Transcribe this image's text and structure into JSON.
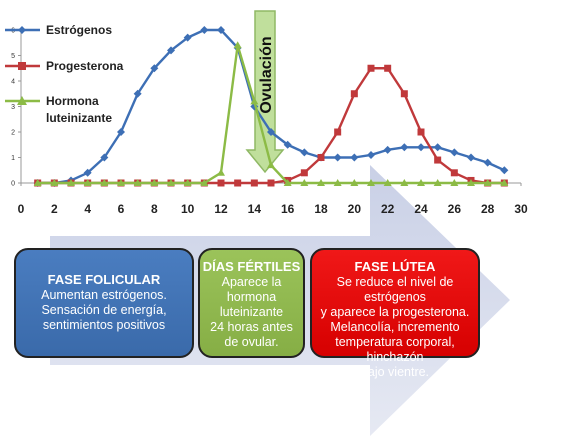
{
  "chart_data": {
    "type": "line",
    "x": [
      1,
      2,
      3,
      4,
      5,
      6,
      7,
      8,
      9,
      10,
      11,
      12,
      13,
      14,
      15,
      16,
      17,
      18,
      19,
      20,
      21,
      22,
      23,
      24,
      25,
      26,
      27,
      28,
      29
    ],
    "xlim": [
      0,
      30
    ],
    "ylim": [
      0,
      6
    ],
    "x_ticks": [
      0,
      2,
      4,
      6,
      8,
      10,
      12,
      14,
      16,
      18,
      20,
      22,
      24,
      26,
      28,
      30
    ],
    "y_ticks": [
      0,
      1,
      2,
      3,
      4,
      5,
      6
    ],
    "grid": false,
    "legend_position": "left",
    "series": [
      {
        "name": "Estrógenos",
        "color": "#3d6fb5",
        "marker": "diamond",
        "values": [
          0,
          0,
          0.1,
          0.4,
          1,
          2,
          3.5,
          4.5,
          5.2,
          5.7,
          6,
          6,
          5.3,
          3,
          2,
          1.5,
          1.2,
          1,
          1,
          1,
          1.1,
          1.3,
          1.4,
          1.4,
          1.4,
          1.2,
          1,
          0.8,
          0.5
        ]
      },
      {
        "name": "Progesterona",
        "color": "#c0393b",
        "marker": "square",
        "values": [
          0,
          0,
          0,
          0,
          0,
          0,
          0,
          0,
          0,
          0,
          0,
          0,
          0,
          0,
          0,
          0.1,
          0.4,
          1,
          2,
          3.5,
          4.5,
          4.5,
          3.5,
          2,
          0.9,
          0.4,
          0.1,
          0,
          0
        ]
      },
      {
        "name": "Hormona\nluteinizante",
        "color": "#8cbb46",
        "marker": "triangle",
        "values": [
          0,
          0,
          0,
          0,
          0,
          0,
          0,
          0,
          0,
          0,
          0,
          0.4,
          5.4,
          3.2,
          0.7,
          0,
          0,
          0,
          0,
          0,
          0,
          0,
          0,
          0,
          0,
          0,
          0,
          0,
          0
        ]
      }
    ],
    "annotations": [
      {
        "text": "Ovulación",
        "x": 15,
        "color": "#b5d98b"
      }
    ]
  },
  "phases": {
    "folicular": {
      "title": "FASE FOLICULAR",
      "text": "Aumentan estrógenos.\nSensación de energía,\nsentimientos positivos",
      "color": "#4a7dc0"
    },
    "fertiles": {
      "title": "DÍAS FÉRTILES",
      "text": "Aparece la\nhormona\nluteinizante\n24 horas antes\nde ovular.",
      "color": "#9bc35a"
    },
    "lutea": {
      "title": "FASE LÚTEA",
      "text": "Se reduce el nivel de estrógenos\ny aparece la progesterona.\nMelancolía, incremento\ntemperatura corporal, hinchazón\nbajo vientre.",
      "color": "#e00000"
    }
  },
  "arrow_color": "#cdd3e8"
}
